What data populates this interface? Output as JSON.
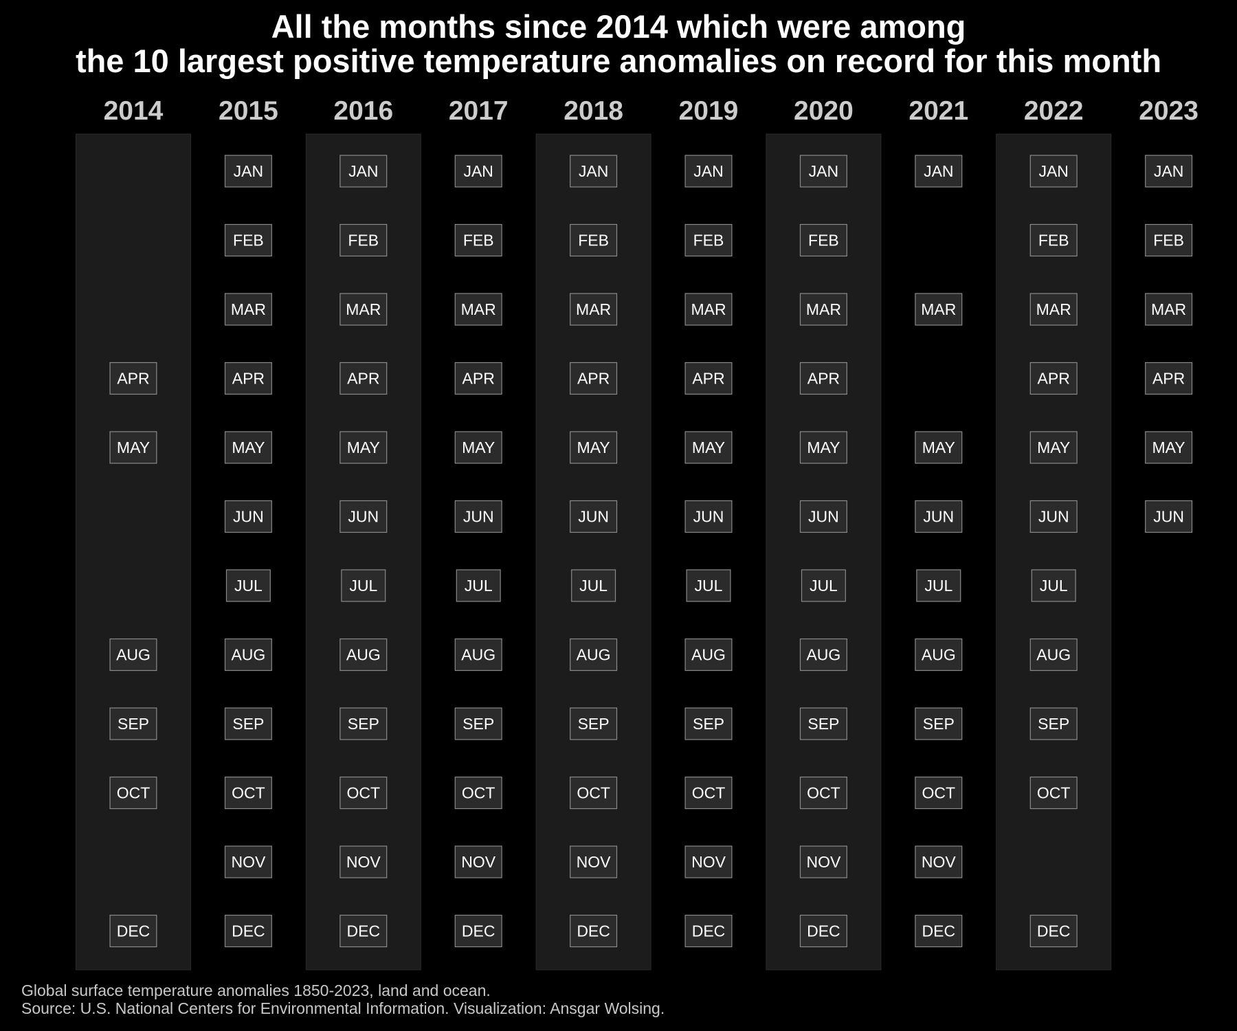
{
  "title": {
    "line1": "All the months since 2014 which were among",
    "line2": "the 10 largest positive temperature anomalies on record for this month"
  },
  "caption": {
    "line1": "Global surface temperature anomalies 1850-2023, land and ocean.",
    "line2": "Source: U.S. National Centers for Environmental Information. Visualization: Ansgar Wolsing."
  },
  "colors": {
    "background": "#000000",
    "column_band": "#1c1c1c",
    "label_box_fill": "#2b2b2b",
    "label_box_stroke": "#8a8a8a",
    "label_text": "#ffffff",
    "year_text": "#cccccc"
  },
  "chart_data": {
    "type": "table",
    "months": [
      "JAN",
      "FEB",
      "MAR",
      "APR",
      "MAY",
      "JUN",
      "JUL",
      "AUG",
      "SEP",
      "OCT",
      "NOV",
      "DEC"
    ],
    "years": [
      {
        "year": "2014",
        "months": [
          "APR",
          "MAY",
          "AUG",
          "SEP",
          "OCT",
          "DEC"
        ]
      },
      {
        "year": "2015",
        "months": [
          "JAN",
          "FEB",
          "MAR",
          "APR",
          "MAY",
          "JUN",
          "JUL",
          "AUG",
          "SEP",
          "OCT",
          "NOV",
          "DEC"
        ]
      },
      {
        "year": "2016",
        "months": [
          "JAN",
          "FEB",
          "MAR",
          "APR",
          "MAY",
          "JUN",
          "JUL",
          "AUG",
          "SEP",
          "OCT",
          "NOV",
          "DEC"
        ]
      },
      {
        "year": "2017",
        "months": [
          "JAN",
          "FEB",
          "MAR",
          "APR",
          "MAY",
          "JUN",
          "JUL",
          "AUG",
          "SEP",
          "OCT",
          "NOV",
          "DEC"
        ]
      },
      {
        "year": "2018",
        "months": [
          "JAN",
          "FEB",
          "MAR",
          "APR",
          "MAY",
          "JUN",
          "JUL",
          "AUG",
          "SEP",
          "OCT",
          "NOV",
          "DEC"
        ]
      },
      {
        "year": "2019",
        "months": [
          "JAN",
          "FEB",
          "MAR",
          "APR",
          "MAY",
          "JUN",
          "JUL",
          "AUG",
          "SEP",
          "OCT",
          "NOV",
          "DEC"
        ]
      },
      {
        "year": "2020",
        "months": [
          "JAN",
          "FEB",
          "MAR",
          "APR",
          "MAY",
          "JUN",
          "JUL",
          "AUG",
          "SEP",
          "OCT",
          "NOV",
          "DEC"
        ]
      },
      {
        "year": "2021",
        "months": [
          "JAN",
          "MAR",
          "MAY",
          "JUN",
          "JUL",
          "AUG",
          "SEP",
          "OCT",
          "NOV",
          "DEC"
        ]
      },
      {
        "year": "2022",
        "months": [
          "JAN",
          "FEB",
          "MAR",
          "APR",
          "MAY",
          "JUN",
          "JUL",
          "AUG",
          "SEP",
          "OCT",
          "DEC"
        ]
      },
      {
        "year": "2023",
        "months": [
          "JAN",
          "FEB",
          "MAR",
          "APR",
          "MAY",
          "JUN"
        ]
      }
    ],
    "shaded_years": [
      "2014",
      "2016",
      "2018",
      "2020",
      "2022"
    ]
  }
}
